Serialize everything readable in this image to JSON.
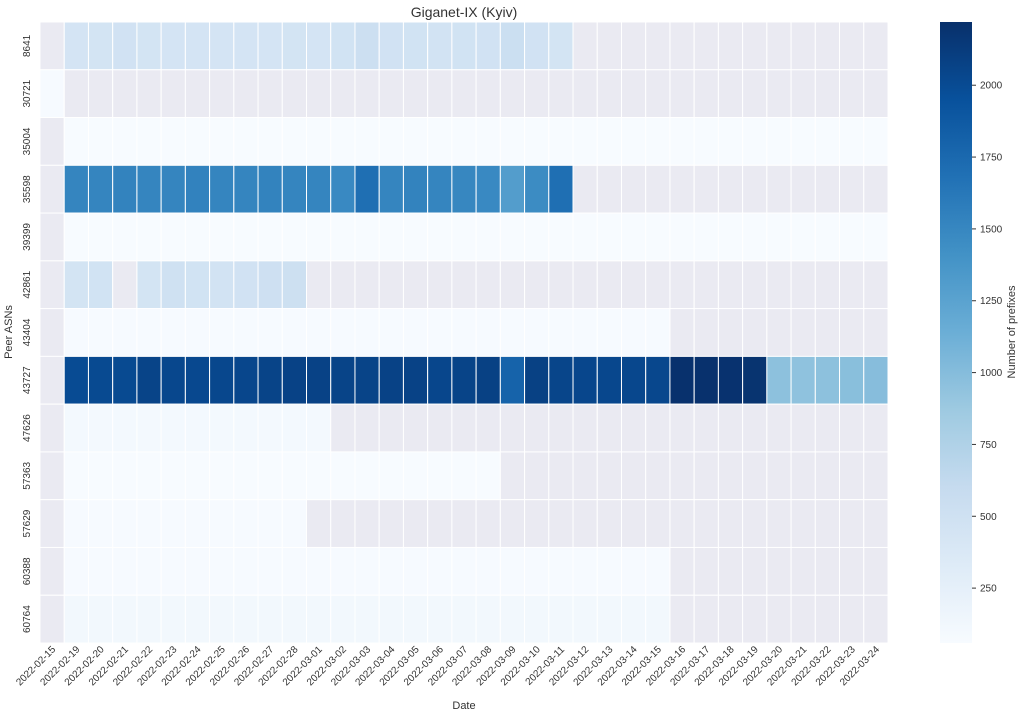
{
  "chart_data": {
    "type": "heatmap",
    "title": "Giganet-IX (Kyiv)",
    "xlabel": "Date",
    "ylabel": "Peer ASNs",
    "colorbar_label": "Number of prefixes",
    "colormap": "Blues",
    "missing_color": "#eaeaf2",
    "color_range": [
      59,
      2220
    ],
    "colorbar_ticks": [
      250,
      500,
      750,
      1000,
      1250,
      1500,
      1750,
      2000
    ],
    "x": [
      "2022-02-15",
      "2022-02-19",
      "2022-02-20",
      "2022-02-21",
      "2022-02-22",
      "2022-02-23",
      "2022-02-24",
      "2022-02-25",
      "2022-02-26",
      "2022-02-27",
      "2022-02-28",
      "2022-03-01",
      "2022-03-02",
      "2022-03-03",
      "2022-03-04",
      "2022-03-05",
      "2022-03-06",
      "2022-03-07",
      "2022-03-08",
      "2022-03-09",
      "2022-03-10",
      "2022-03-11",
      "2022-03-12",
      "2022-03-13",
      "2022-03-14",
      "2022-03-15",
      "2022-03-16",
      "2022-03-17",
      "2022-03-18",
      "2022-03-19",
      "2022-03-20",
      "2022-03-21",
      "2022-03-22",
      "2022-03-23",
      "2022-03-24"
    ],
    "y": [
      "8641",
      "30721",
      "35004",
      "35598",
      "39399",
      "42861",
      "43404",
      "43727",
      "47626",
      "57363",
      "57629",
      "60388",
      "60764"
    ],
    "values": [
      [
        null,
        440,
        450,
        480,
        450,
        440,
        440,
        440,
        440,
        440,
        450,
        440,
        470,
        530,
        480,
        470,
        460,
        470,
        480,
        540,
        480,
        450,
        null,
        null,
        null,
        null,
        null,
        null,
        null,
        null,
        null,
        null,
        null,
        null,
        null
      ],
      [
        70,
        null,
        null,
        null,
        null,
        null,
        null,
        null,
        null,
        null,
        null,
        null,
        null,
        null,
        null,
        null,
        null,
        null,
        null,
        null,
        null,
        null,
        null,
        null,
        null,
        null,
        null,
        null,
        null,
        null,
        null,
        null,
        null,
        null,
        null
      ],
      [
        null,
        60,
        60,
        60,
        60,
        60,
        60,
        60,
        60,
        60,
        60,
        60,
        60,
        60,
        60,
        60,
        60,
        60,
        60,
        60,
        60,
        60,
        60,
        60,
        60,
        60,
        60,
        60,
        60,
        60,
        60,
        60,
        60,
        60,
        60
      ],
      [
        null,
        1520,
        1520,
        1530,
        1520,
        1520,
        1540,
        1520,
        1520,
        1530,
        1520,
        1520,
        1480,
        1700,
        1520,
        1530,
        1520,
        1500,
        1480,
        1300,
        1460,
        1700,
        null,
        null,
        null,
        null,
        null,
        null,
        null,
        null,
        null,
        null,
        null,
        null,
        null
      ],
      [
        null,
        60,
        60,
        60,
        60,
        60,
        60,
        60,
        60,
        60,
        60,
        60,
        60,
        60,
        60,
        60,
        60,
        60,
        60,
        60,
        60,
        60,
        60,
        60,
        60,
        60,
        60,
        60,
        60,
        60,
        60,
        60,
        60,
        60,
        60
      ],
      [
        null,
        450,
        470,
        null,
        450,
        500,
        470,
        460,
        480,
        510,
        520,
        null,
        null,
        null,
        null,
        null,
        null,
        null,
        null,
        null,
        null,
        null,
        null,
        null,
        null,
        null,
        null,
        null,
        null,
        null,
        null,
        null,
        null,
        null,
        null
      ],
      [
        null,
        70,
        70,
        70,
        70,
        70,
        70,
        70,
        70,
        70,
        70,
        70,
        70,
        70,
        70,
        70,
        70,
        70,
        70,
        70,
        70,
        70,
        70,
        70,
        70,
        70,
        null,
        null,
        null,
        null,
        null,
        null,
        null,
        null,
        null
      ],
      [
        null,
        2000,
        2010,
        2010,
        2060,
        2030,
        2020,
        2030,
        2040,
        2060,
        2070,
        2070,
        2060,
        2060,
        2070,
        2070,
        2040,
        2060,
        2080,
        1800,
        2080,
        2050,
        2040,
        2030,
        2030,
        2030,
        2210,
        2210,
        2200,
        2190,
        960,
        950,
        960,
        980,
        990
      ],
      [
        null,
        100,
        100,
        100,
        100,
        100,
        100,
        100,
        100,
        100,
        100,
        100,
        null,
        null,
        null,
        null,
        null,
        null,
        null,
        null,
        null,
        null,
        null,
        null,
        null,
        null,
        null,
        null,
        null,
        null,
        null,
        null,
        null,
        null,
        null
      ],
      [
        null,
        60,
        60,
        60,
        60,
        60,
        60,
        60,
        60,
        60,
        60,
        60,
        60,
        60,
        60,
        60,
        60,
        60,
        60,
        null,
        null,
        null,
        null,
        null,
        null,
        null,
        null,
        null,
        null,
        null,
        null,
        null,
        null,
        null,
        null
      ],
      [
        null,
        70,
        70,
        70,
        70,
        70,
        70,
        70,
        70,
        70,
        70,
        null,
        null,
        null,
        null,
        null,
        null,
        null,
        null,
        null,
        null,
        null,
        null,
        null,
        null,
        null,
        null,
        null,
        null,
        null,
        null,
        null,
        null,
        null,
        null
      ],
      [
        null,
        70,
        70,
        70,
        70,
        70,
        70,
        70,
        70,
        70,
        70,
        70,
        70,
        70,
        70,
        70,
        70,
        70,
        70,
        70,
        70,
        70,
        70,
        70,
        70,
        70,
        null,
        null,
        null,
        null,
        null,
        null,
        null,
        null,
        null
      ],
      [
        null,
        110,
        110,
        110,
        110,
        110,
        110,
        110,
        110,
        110,
        110,
        110,
        110,
        110,
        110,
        110,
        110,
        110,
        110,
        110,
        110,
        110,
        110,
        110,
        110,
        110,
        null,
        null,
        null,
        null,
        null,
        null,
        null,
        null,
        null
      ]
    ]
  }
}
